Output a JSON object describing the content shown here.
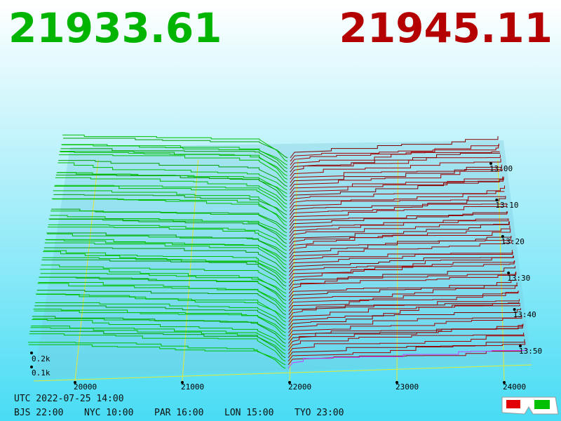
{
  "header": {
    "bid": "21933.61",
    "ask": "21945.11"
  },
  "price_ticks": [
    20000,
    21000,
    22000,
    23000,
    24000
  ],
  "depth_ticks": [
    "0.1k",
    "0.2k"
  ],
  "time_ticks": [
    "13:00",
    "13:10",
    "13:20",
    "13:30",
    "13:40",
    "13:50"
  ],
  "footer": {
    "utc": "UTC 2022-07-25 14:00",
    "clocks": [
      "BJS 22:00",
      "NYC 10:00",
      "PAR 16:00",
      "LON 15:00",
      "TYO 23:00"
    ]
  }
}
